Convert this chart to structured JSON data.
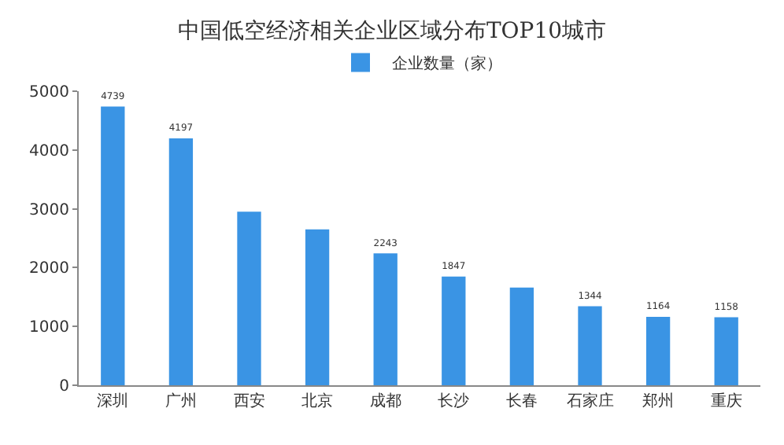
{
  "chart_data": {
    "type": "bar",
    "title": "中国低空经济相关企业区域分布TOP10城市",
    "categories": [
      "深圳",
      "广州",
      "西安",
      "北京",
      "成都",
      "长沙",
      "长春",
      "石家庄",
      "郑州",
      "重庆"
    ],
    "series": [
      {
        "name": "企业数量（家）",
        "color": "#3a94e4",
        "values": [
          4739,
          4197,
          2950,
          2650,
          2243,
          1847,
          1660,
          1344,
          1164,
          1158
        ],
        "value_labels": [
          "4739",
          "4197",
          null,
          null,
          "2243",
          "1847",
          null,
          "1344",
          "1164",
          "1158"
        ]
      }
    ],
    "ylim": [
      0,
      5000
    ],
    "yticks": [
      0,
      1000,
      2000,
      3000,
      4000,
      5000
    ],
    "grid": false,
    "legend": "top"
  }
}
